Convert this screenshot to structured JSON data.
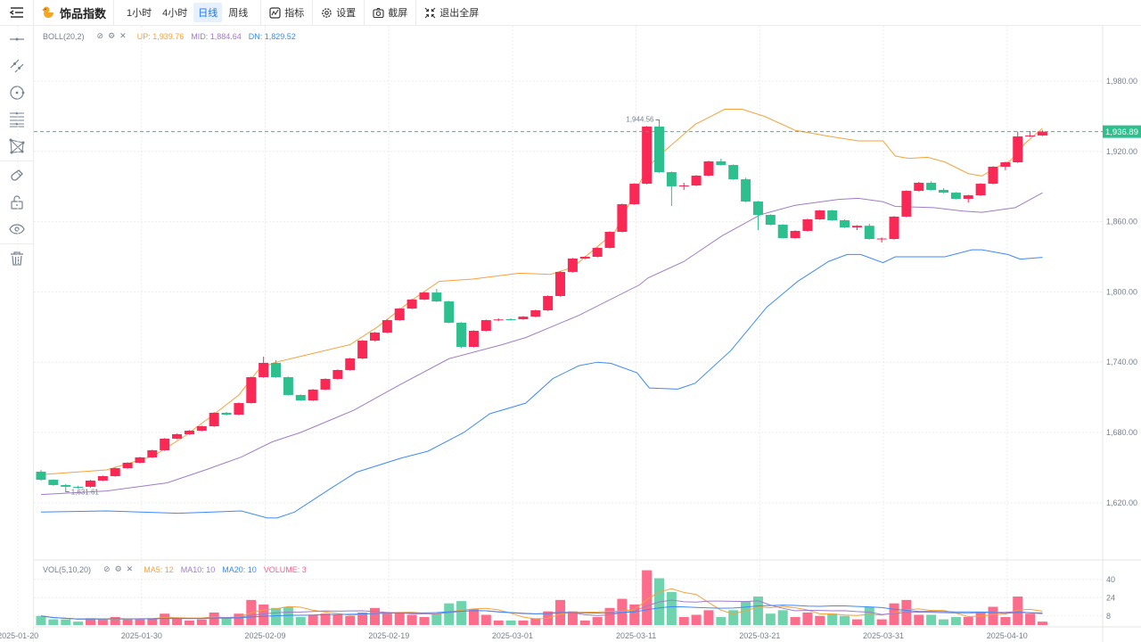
{
  "header": {
    "title": "饰品指数",
    "timeframes": [
      {
        "label": "1小时",
        "active": false
      },
      {
        "label": "4小时",
        "active": false
      },
      {
        "label": "日线",
        "active": true
      },
      {
        "label": "周线",
        "active": false
      }
    ],
    "tools": {
      "indicator": "指标",
      "settings": "设置",
      "screenshot": "截屏",
      "exit_fullscreen": "退出全屏"
    }
  },
  "sidebar": {
    "items": [
      "horizontal-line",
      "parallel-line",
      "circle",
      "fibonacci",
      "polygon",
      "magnet",
      "lock",
      "visibility",
      "delete"
    ]
  },
  "colors": {
    "up": "#f92855",
    "down": "#2dc08e",
    "boll_up": "#f7a23b",
    "boll_mid": "#a07cc9",
    "boll_dn": "#3d8bf7",
    "ma5": "#f7a23b",
    "ma10": "#a07cc9",
    "ma20": "#3d8bf7",
    "volume": "#f7628b"
  },
  "chart_data": {
    "type": "candlestick",
    "boll_legend": {
      "name": "BOLL(20,2)",
      "up": "UP: 1,939.76",
      "mid": "MID: 1,884.64",
      "dn": "DN: 1,829.52"
    },
    "vol_legend": {
      "name": "VOL(5,10,20)",
      "ma5": "MA5: 12",
      "ma10": "MA10: 10",
      "ma20": "MA20: 10",
      "volume": "VOLUME: 3"
    },
    "price_range": [
      1580,
      2020
    ],
    "y_ticks": [
      {
        "value": 1980,
        "label": "1,980.00"
      },
      {
        "value": 1920,
        "label": "1,920.00"
      },
      {
        "value": 1860,
        "label": "1,860.00"
      },
      {
        "value": 1800,
        "label": "1,800.00"
      },
      {
        "value": 1740,
        "label": "1,740.00"
      },
      {
        "value": 1680,
        "label": "1,680.00"
      },
      {
        "value": 1620,
        "label": "1,620.00"
      }
    ],
    "vol_ticks": [
      {
        "value": 40,
        "label": "40"
      },
      {
        "value": 24,
        "label": "24"
      },
      {
        "value": 8,
        "label": "8"
      }
    ],
    "x_ticks": [
      {
        "index": -1,
        "label": "2025-01-20"
      },
      {
        "index": 9,
        "label": "2025-01-30"
      },
      {
        "index": 19,
        "label": "2025-02-09"
      },
      {
        "index": 29,
        "label": "2025-02-19"
      },
      {
        "index": 39,
        "label": "2025-03-01"
      },
      {
        "index": 49,
        "label": "2025-03-11"
      },
      {
        "index": 59,
        "label": "2025-03-21"
      },
      {
        "index": 69,
        "label": "2025-03-31"
      },
      {
        "index": 79,
        "label": "2025-04-10"
      }
    ],
    "current_price": {
      "value": 1936.89,
      "label": "1,936.89"
    },
    "max_mark": {
      "index": 50,
      "value": 1944.56,
      "label": "1,944.56"
    },
    "min_mark": {
      "index": 2,
      "value": 1631.61,
      "label": "1,631.61"
    },
    "ohlc": [
      [
        1646.5,
        1648.0,
        1638.9,
        1639.6
      ],
      [
        1639.6,
        1640.0,
        1634.5,
        1635.1
      ],
      [
        1635.1,
        1636.0,
        1631.61,
        1633.6
      ],
      [
        1633.6,
        1634.5,
        1632.0,
        1632.8
      ],
      [
        1633.6,
        1639.5,
        1633.0,
        1638.9
      ],
      [
        1638.9,
        1643.2,
        1638.5,
        1642.7
      ],
      [
        1642.7,
        1650.0,
        1642.2,
        1649.5
      ],
      [
        1649.5,
        1654.6,
        1649.0,
        1654.1
      ],
      [
        1654.1,
        1659.2,
        1653.6,
        1658.7
      ],
      [
        1658.7,
        1665.3,
        1658.2,
        1664.8
      ],
      [
        1664.8,
        1675.2,
        1664.3,
        1674.7
      ],
      [
        1674.7,
        1679.0,
        1674.2,
        1678.5
      ],
      [
        1678.5,
        1682.0,
        1678.0,
        1681.5
      ],
      [
        1681.5,
        1685.8,
        1681.0,
        1685.3
      ],
      [
        1685.3,
        1697.3,
        1684.8,
        1696.8
      ],
      [
        1696.8,
        1697.5,
        1694.5,
        1695.2
      ],
      [
        1695.2,
        1705.6,
        1694.7,
        1705.1
      ],
      [
        1705.1,
        1727.7,
        1704.6,
        1727.2
      ],
      [
        1727.2,
        1744.7,
        1726.7,
        1739.4
      ],
      [
        1739.4,
        1741.7,
        1726.7,
        1727.2
      ],
      [
        1727.2,
        1727.7,
        1711.5,
        1712.0
      ],
      [
        1712.0,
        1712.5,
        1706.9,
        1707.4
      ],
      [
        1707.4,
        1717.1,
        1706.9,
        1716.6
      ],
      [
        1716.6,
        1726.2,
        1716.1,
        1725.7
      ],
      [
        1725.7,
        1733.8,
        1725.2,
        1733.3
      ],
      [
        1733.3,
        1743.7,
        1732.8,
        1743.2
      ],
      [
        1743.2,
        1758.9,
        1742.7,
        1758.4
      ],
      [
        1758.4,
        1765.8,
        1757.9,
        1765.3
      ],
      [
        1765.3,
        1776.4,
        1764.8,
        1775.9
      ],
      [
        1775.9,
        1786.3,
        1775.4,
        1785.8
      ],
      [
        1785.8,
        1794.0,
        1785.3,
        1793.5
      ],
      [
        1793.5,
        1800.0,
        1793.0,
        1799.5
      ],
      [
        1799.5,
        1802.6,
        1791.4,
        1791.9
      ],
      [
        1791.9,
        1792.4,
        1773.2,
        1773.7
      ],
      [
        1773.7,
        1774.2,
        1752.0,
        1753.1
      ],
      [
        1753.1,
        1767.3,
        1752.6,
        1766.8
      ],
      [
        1766.8,
        1776.4,
        1766.3,
        1775.9
      ],
      [
        1775.9,
        1777.5,
        1775.0,
        1776.5
      ],
      [
        1776.7,
        1777.5,
        1775.5,
        1776.2
      ],
      [
        1776.7,
        1779.4,
        1776.2,
        1778.9
      ],
      [
        1778.9,
        1784.8,
        1778.4,
        1784.3
      ],
      [
        1784.3,
        1797.0,
        1783.8,
        1796.5
      ],
      [
        1796.5,
        1817.6,
        1796.0,
        1817.1
      ],
      [
        1817.1,
        1829.0,
        1816.6,
        1828.5
      ],
      [
        1828.5,
        1830.5,
        1828.0,
        1830.0
      ],
      [
        1830.0,
        1838.1,
        1829.5,
        1837.6
      ],
      [
        1837.6,
        1851.8,
        1837.1,
        1851.3
      ],
      [
        1851.3,
        1875.4,
        1850.8,
        1874.9
      ],
      [
        1874.9,
        1892.9,
        1874.4,
        1892.4
      ],
      [
        1892.4,
        1941.7,
        1891.9,
        1941.2
      ],
      [
        1941.2,
        1944.56,
        1901.8,
        1902.3
      ],
      [
        1902.3,
        1902.8,
        1873.4,
        1890.2
      ],
      [
        1890.2,
        1893.2,
        1887.1,
        1890.9
      ],
      [
        1890.9,
        1899.8,
        1890.4,
        1899.3
      ],
      [
        1899.3,
        1912.0,
        1898.8,
        1911.5
      ],
      [
        1911.5,
        1913.8,
        1907.9,
        1908.4
      ],
      [
        1908.4,
        1908.9,
        1895.7,
        1896.2
      ],
      [
        1896.2,
        1897.5,
        1876.7,
        1877.2
      ],
      [
        1877.2,
        1877.7,
        1852.8,
        1865.8
      ],
      [
        1865.8,
        1866.3,
        1856.9,
        1857.4
      ],
      [
        1857.4,
        1857.9,
        1845.5,
        1846.0
      ],
      [
        1846.0,
        1852.6,
        1845.5,
        1852.1
      ],
      [
        1852.1,
        1862.5,
        1851.6,
        1862.0
      ],
      [
        1862.0,
        1870.1,
        1861.5,
        1869.6
      ],
      [
        1869.6,
        1870.1,
        1860.7,
        1861.2
      ],
      [
        1861.2,
        1862.0,
        1854.6,
        1855.1
      ],
      [
        1855.1,
        1857.0,
        1852.8,
        1856.5
      ],
      [
        1856.5,
        1858.2,
        1844.7,
        1845.2
      ],
      [
        1845.2,
        1846.5,
        1842.2,
        1845.6
      ],
      [
        1845.2,
        1864.8,
        1844.7,
        1864.3
      ],
      [
        1864.3,
        1886.8,
        1863.8,
        1886.3
      ],
      [
        1886.3,
        1894.0,
        1885.8,
        1893.2
      ],
      [
        1893.2,
        1894.5,
        1886.6,
        1887.1
      ],
      [
        1887.1,
        1888.5,
        1884.3,
        1884.8
      ],
      [
        1884.8,
        1885.3,
        1879.0,
        1879.5
      ],
      [
        1879.5,
        1883.0,
        1876.4,
        1882.5
      ],
      [
        1882.5,
        1892.9,
        1882.0,
        1892.4
      ],
      [
        1892.4,
        1907.4,
        1891.9,
        1906.9
      ],
      [
        1906.9,
        1911.2,
        1903.9,
        1910.7
      ],
      [
        1910.7,
        1937.0,
        1910.2,
        1932.8
      ],
      [
        1932.8,
        1937.4,
        1932.3,
        1933.6
      ],
      [
        1933.6,
        1938.0,
        1933.1,
        1936.89
      ]
    ],
    "volume": [
      8,
      5,
      5,
      3,
      6,
      5,
      7,
      5,
      5,
      6,
      10,
      6,
      4,
      5,
      11,
      6,
      10,
      22,
      18,
      15,
      16,
      7,
      9,
      10,
      9,
      8,
      11,
      15,
      10,
      11,
      9,
      7,
      10,
      19,
      21,
      14,
      9,
      4,
      4,
      4,
      6,
      12,
      22,
      12,
      4,
      7,
      15,
      23,
      18,
      48,
      41,
      29,
      7,
      9,
      13,
      7,
      13,
      21,
      25,
      10,
      13,
      7,
      11,
      8,
      10,
      8,
      5,
      16,
      5,
      19,
      22,
      9,
      9,
      5,
      7,
      7,
      11,
      16,
      7,
      25,
      10,
      3
    ],
    "boll_up": [
      [
        0,
        1644
      ],
      [
        5.3,
        1648
      ],
      [
        9.1,
        1660
      ],
      [
        11.5,
        1676
      ],
      [
        13.8,
        1694
      ],
      [
        16,
        1712
      ],
      [
        17.7,
        1735
      ],
      [
        19,
        1740
      ],
      [
        21,
        1745
      ],
      [
        25,
        1755
      ],
      [
        27.2,
        1770
      ],
      [
        30,
        1793
      ],
      [
        32.2,
        1809
      ],
      [
        34.9,
        1811
      ],
      [
        38.7,
        1816
      ],
      [
        41.2,
        1815
      ],
      [
        43,
        1821
      ],
      [
        46.4,
        1851
      ],
      [
        49.1,
        1907
      ],
      [
        50.5,
        1921
      ],
      [
        52.9,
        1943
      ],
      [
        55.3,
        1956
      ],
      [
        56.7,
        1956
      ],
      [
        58.5,
        1950
      ],
      [
        61,
        1938
      ],
      [
        63.7,
        1933
      ],
      [
        66.1,
        1929
      ],
      [
        68.1,
        1929
      ],
      [
        69.1,
        1916
      ],
      [
        70.2,
        1914
      ],
      [
        71.7,
        1915
      ],
      [
        73.1,
        1911
      ],
      [
        75,
        1901
      ],
      [
        76.1,
        1899
      ],
      [
        77.2,
        1906
      ],
      [
        78.4,
        1912
      ],
      [
        79.6,
        1927
      ],
      [
        81,
        1939.76
      ]
    ],
    "boll_mid": [
      [
        0,
        1627
      ],
      [
        5.3,
        1630
      ],
      [
        10.2,
        1637
      ],
      [
        13.3,
        1648
      ],
      [
        16.2,
        1659
      ],
      [
        18.7,
        1672
      ],
      [
        21,
        1680
      ],
      [
        25.3,
        1699
      ],
      [
        28.9,
        1720
      ],
      [
        33,
        1743
      ],
      [
        37.3,
        1755
      ],
      [
        39.2,
        1761
      ],
      [
        43.5,
        1780
      ],
      [
        48.4,
        1806
      ],
      [
        49.1,
        1812
      ],
      [
        52,
        1826
      ],
      [
        55.1,
        1848
      ],
      [
        58.2,
        1866
      ],
      [
        61,
        1874
      ],
      [
        64.5,
        1879
      ],
      [
        66.1,
        1880
      ],
      [
        68.1,
        1877
      ],
      [
        69.1,
        1873
      ],
      [
        72.2,
        1872
      ],
      [
        74.6,
        1869
      ],
      [
        76.1,
        1868
      ],
      [
        78.8,
        1872
      ],
      [
        81,
        1884.64
      ]
    ],
    "boll_dn": [
      [
        0,
        1612
      ],
      [
        5.3,
        1613
      ],
      [
        11.1,
        1611
      ],
      [
        16.2,
        1613
      ],
      [
        18.3,
        1607
      ],
      [
        19.1,
        1607
      ],
      [
        20.5,
        1612
      ],
      [
        23.4,
        1632
      ],
      [
        25.5,
        1646
      ],
      [
        29.1,
        1658
      ],
      [
        31.3,
        1664
      ],
      [
        34.2,
        1680
      ],
      [
        36.3,
        1696
      ],
      [
        39.2,
        1705
      ],
      [
        41.4,
        1726
      ],
      [
        43.5,
        1737
      ],
      [
        45,
        1740
      ],
      [
        46.1,
        1739
      ],
      [
        48.2,
        1731
      ],
      [
        49.2,
        1718
      ],
      [
        51.5,
        1717
      ],
      [
        52.9,
        1722
      ],
      [
        55.8,
        1750
      ],
      [
        58.7,
        1787
      ],
      [
        61.2,
        1809
      ],
      [
        63.7,
        1826
      ],
      [
        65.2,
        1832
      ],
      [
        66.3,
        1832
      ],
      [
        68.1,
        1825
      ],
      [
        69.1,
        1830
      ],
      [
        73.1,
        1830
      ],
      [
        75.3,
        1836
      ],
      [
        76.1,
        1836
      ],
      [
        78.2,
        1832
      ],
      [
        79.2,
        1828
      ],
      [
        81,
        1829.52
      ]
    ]
  }
}
